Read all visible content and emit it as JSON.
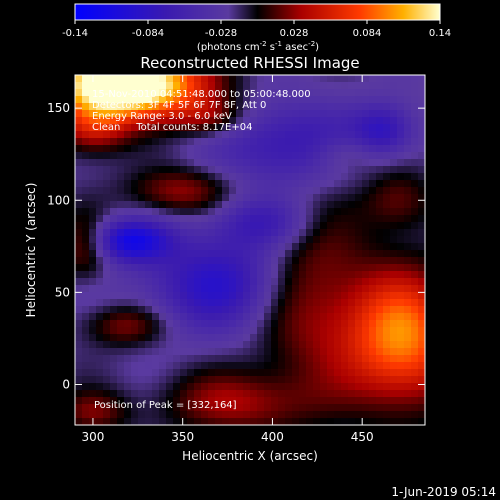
{
  "chart_data": {
    "type": "heatmap",
    "title": "Reconstructed RHESSI Image",
    "xlabel": "Heliocentric X (arcsec)",
    "ylabel": "Heliocentric Y (arcsec)",
    "xlim": [
      290,
      485
    ],
    "ylim": [
      -22,
      168
    ],
    "x_ticks": [
      300,
      350,
      400,
      450
    ],
    "y_ticks": [
      0,
      50,
      100,
      150
    ],
    "colorbar": {
      "ticks": [
        "-0.14",
        "-0.084",
        "-0.028",
        "0.028",
        "0.084",
        "0.14"
      ],
      "range": [
        -0.14,
        0.14
      ],
      "units_text": "(photons cm",
      "units_exp1": "-2",
      "units_mid": " s",
      "units_exp2": "-1",
      "units_mid2": " asec",
      "units_exp3": "-2",
      "units_end": ")"
    },
    "annotations": [
      "15-Nov-2010 04:51:48.000 to 05:00:48.000",
      "Detectors: 3F 4F 5F 6F 7F 8F, Att 0",
      "Energy Range: 3.0 - 6.0 keV",
      "Clean     Total counts: 8.17E+04"
    ],
    "peak_label": "Position of Peak = [332,164]",
    "sources": [
      {
        "x": 318,
        "y": 163,
        "sx": 28,
        "sy": 12,
        "amp": 0.22
      },
      {
        "x": 300,
        "y": 140,
        "sx": 14,
        "sy": 10,
        "amp": 0.07
      },
      {
        "x": 365,
        "y": 145,
        "sx": 14,
        "sy": 8,
        "amp": 0.05
      },
      {
        "x": 348,
        "y": 105,
        "sx": 20,
        "sy": 9,
        "amp": 0.05
      },
      {
        "x": 296,
        "y": 75,
        "sx": 10,
        "sy": 12,
        "amp": 0.05
      },
      {
        "x": 318,
        "y": 32,
        "sx": 16,
        "sy": 8,
        "amp": 0.045
      },
      {
        "x": 420,
        "y": 50,
        "sx": 22,
        "sy": 35,
        "amp": 0.055
      },
      {
        "x": 472,
        "y": 25,
        "sx": 22,
        "sy": 25,
        "amp": 0.12
      },
      {
        "x": 470,
        "y": 100,
        "sx": 14,
        "sy": 12,
        "amp": 0.04
      },
      {
        "x": 440,
        "y": 125,
        "sx": 14,
        "sy": 8,
        "amp": 0.03
      },
      {
        "x": 380,
        "y": -10,
        "sx": 30,
        "sy": 12,
        "amp": 0.05
      },
      {
        "x": 300,
        "y": -15,
        "sx": 14,
        "sy": 8,
        "amp": 0.04
      },
      {
        "x": 320,
        "y": 78,
        "sx": 16,
        "sy": 8,
        "amp": -0.09
      },
      {
        "x": 372,
        "y": 55,
        "sx": 30,
        "sy": 18,
        "amp": -0.07
      },
      {
        "x": 410,
        "y": 130,
        "sx": 28,
        "sy": 16,
        "amp": -0.06
      },
      {
        "x": 462,
        "y": 138,
        "sx": 12,
        "sy": 10,
        "amp": -0.06
      },
      {
        "x": 395,
        "y": 88,
        "sx": 20,
        "sy": 10,
        "amp": -0.05
      }
    ]
  },
  "footer": {
    "date": "1-Jun-2019 05:14"
  }
}
